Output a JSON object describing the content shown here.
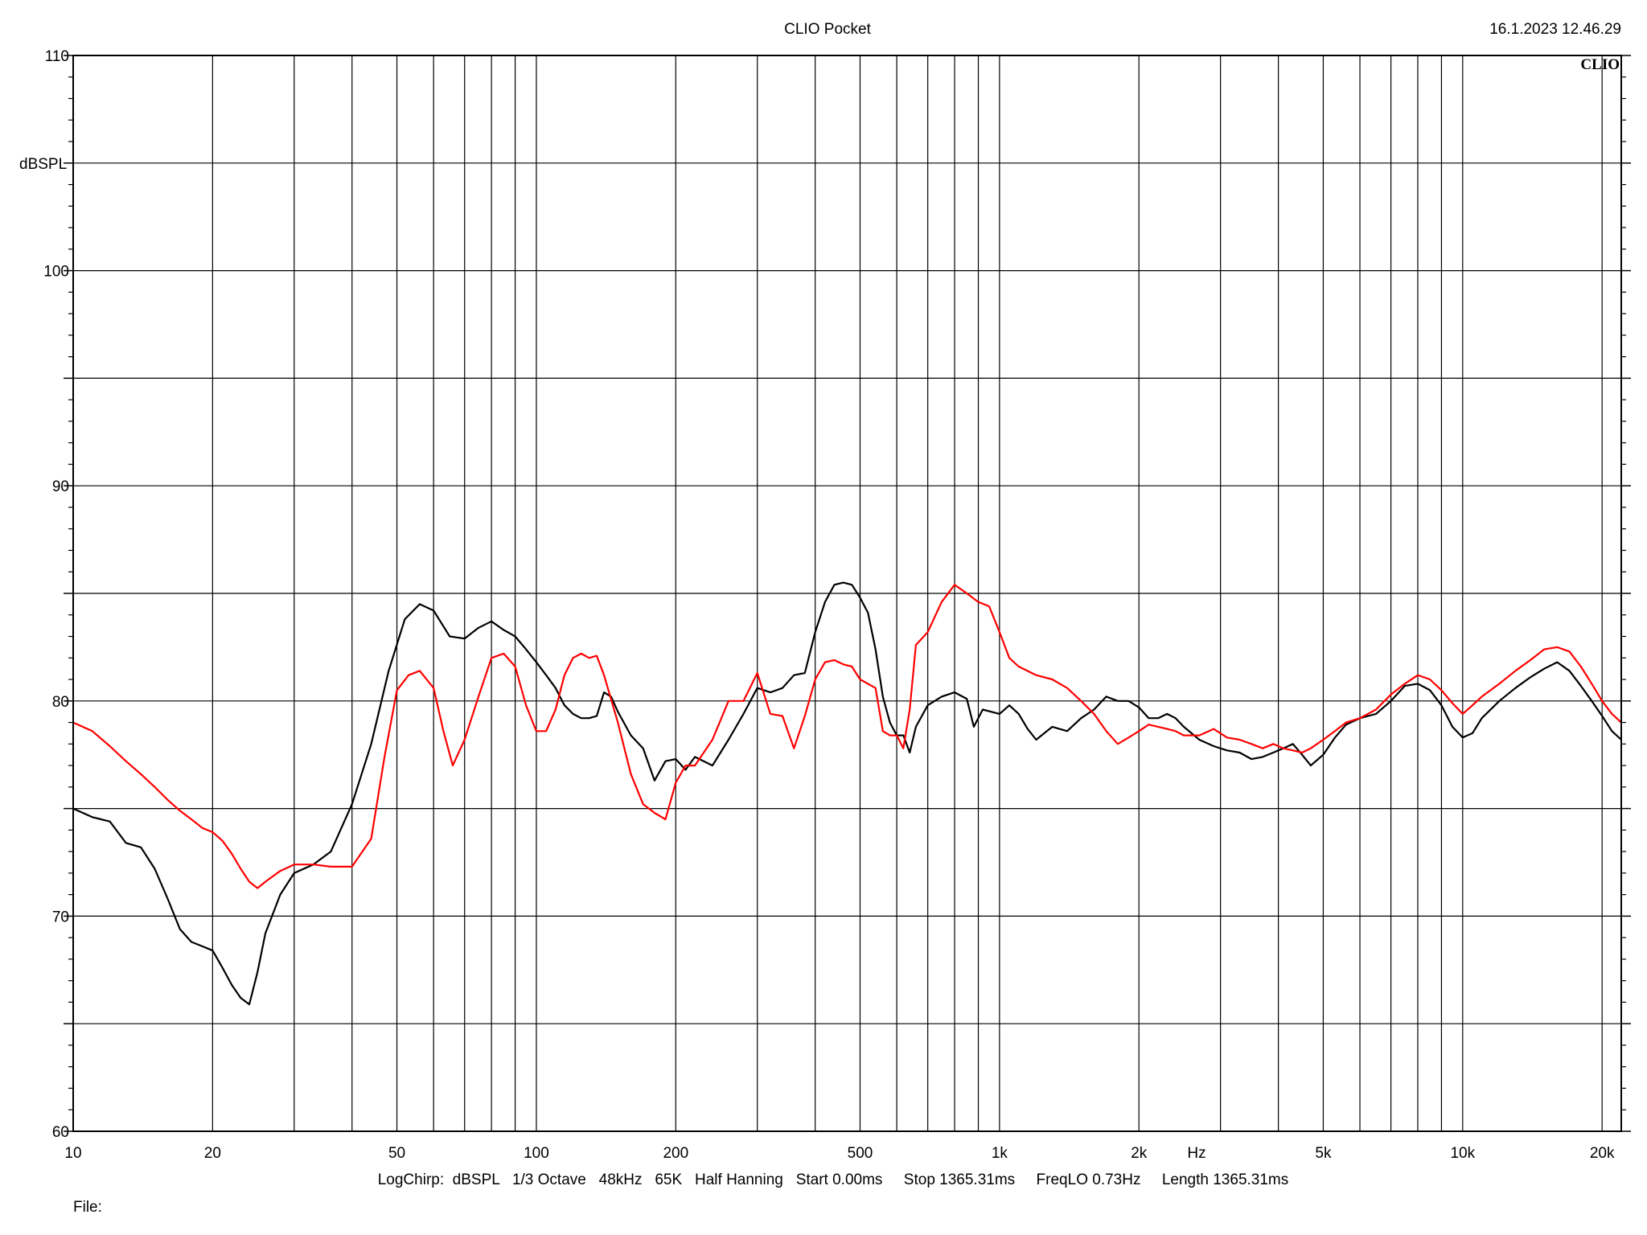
{
  "header": {
    "title": "CLIO Pocket",
    "timestamp": "16.1.2023 12.46.29",
    "logo": "CLIO"
  },
  "footer": {
    "settings": "LogChirp:  dBSPL   1/3 Octave   48kHz   65K   Half Hanning   Start 0.00ms     Stop 1365.31ms     FreqLO 0.73Hz     Length 1365.31ms",
    "file_label": "File:"
  },
  "colors": {
    "background": "#ffffff",
    "grid": "#000000",
    "black_trace": "#000000",
    "red_trace": "#ff0000"
  },
  "chart_data": {
    "type": "line",
    "title": "CLIO Pocket",
    "xlabel": "Hz",
    "ylabel": "dBSPL",
    "xscale": "log",
    "xlim": [
      10,
      22000
    ],
    "ylim": [
      60,
      110
    ],
    "grid": true,
    "x_tick_labels": [
      {
        "value": 10,
        "label": "10"
      },
      {
        "value": 20,
        "label": "20"
      },
      {
        "value": 50,
        "label": "50"
      },
      {
        "value": 100,
        "label": "100"
      },
      {
        "value": 200,
        "label": "200"
      },
      {
        "value": 500,
        "label": "500"
      },
      {
        "value": 1000,
        "label": "1k"
      },
      {
        "value": 2000,
        "label": "2k"
      },
      {
        "value": 5000,
        "label": "5k"
      },
      {
        "value": 10000,
        "label": "10k"
      },
      {
        "value": 20000,
        "label": "20k"
      }
    ],
    "y_tick_labels": [
      {
        "value": 60,
        "label": "60"
      },
      {
        "value": 70,
        "label": "70"
      },
      {
        "value": 80,
        "label": "80"
      },
      {
        "value": 90,
        "label": "90"
      },
      {
        "value": 100,
        "label": "100"
      },
      {
        "value": 110,
        "label": "110"
      }
    ],
    "series": [
      {
        "color": "#000000",
        "points": [
          [
            10,
            75.0
          ],
          [
            11,
            74.6
          ],
          [
            12,
            74.4
          ],
          [
            13,
            73.4
          ],
          [
            14,
            73.2
          ],
          [
            15,
            72.2
          ],
          [
            16,
            70.8
          ],
          [
            17,
            69.4
          ],
          [
            18,
            68.8
          ],
          [
            19,
            68.6
          ],
          [
            20,
            68.4
          ],
          [
            21,
            67.6
          ],
          [
            22,
            66.8
          ],
          [
            23,
            66.2
          ],
          [
            24,
            65.9
          ],
          [
            25,
            67.4
          ],
          [
            26,
            69.2
          ],
          [
            28,
            71.0
          ],
          [
            30,
            72.0
          ],
          [
            33,
            72.4
          ],
          [
            36,
            73.0
          ],
          [
            40,
            75.2
          ],
          [
            44,
            78.0
          ],
          [
            48,
            81.4
          ],
          [
            52,
            83.8
          ],
          [
            56,
            84.5
          ],
          [
            60,
            84.2
          ],
          [
            65,
            83.0
          ],
          [
            70,
            82.9
          ],
          [
            75,
            83.4
          ],
          [
            80,
            83.7
          ],
          [
            85,
            83.3
          ],
          [
            90,
            83.0
          ],
          [
            95,
            82.4
          ],
          [
            100,
            81.8
          ],
          [
            105,
            81.2
          ],
          [
            110,
            80.6
          ],
          [
            115,
            79.8
          ],
          [
            120,
            79.4
          ],
          [
            125,
            79.2
          ],
          [
            130,
            79.2
          ],
          [
            135,
            79.3
          ],
          [
            140,
            80.4
          ],
          [
            145,
            80.2
          ],
          [
            150,
            79.5
          ],
          [
            160,
            78.4
          ],
          [
            170,
            77.8
          ],
          [
            180,
            76.3
          ],
          [
            190,
            77.2
          ],
          [
            200,
            77.3
          ],
          [
            210,
            76.8
          ],
          [
            220,
            77.4
          ],
          [
            240,
            77.0
          ],
          [
            260,
            78.2
          ],
          [
            280,
            79.4
          ],
          [
            300,
            80.6
          ],
          [
            320,
            80.4
          ],
          [
            340,
            80.6
          ],
          [
            360,
            81.2
          ],
          [
            380,
            81.3
          ],
          [
            400,
            83.2
          ],
          [
            420,
            84.6
          ],
          [
            440,
            85.4
          ],
          [
            460,
            85.5
          ],
          [
            480,
            85.4
          ],
          [
            500,
            84.8
          ],
          [
            520,
            84.1
          ],
          [
            540,
            82.4
          ],
          [
            560,
            80.2
          ],
          [
            580,
            79.0
          ],
          [
            600,
            78.4
          ],
          [
            620,
            78.4
          ],
          [
            640,
            77.6
          ],
          [
            660,
            78.8
          ],
          [
            700,
            79.8
          ],
          [
            750,
            80.2
          ],
          [
            800,
            80.4
          ],
          [
            850,
            80.1
          ],
          [
            880,
            78.8
          ],
          [
            920,
            79.6
          ],
          [
            1000,
            79.4
          ],
          [
            1050,
            79.8
          ],
          [
            1100,
            79.4
          ],
          [
            1150,
            78.7
          ],
          [
            1200,
            78.2
          ],
          [
            1300,
            78.8
          ],
          [
            1400,
            78.6
          ],
          [
            1500,
            79.2
          ],
          [
            1600,
            79.6
          ],
          [
            1700,
            80.2
          ],
          [
            1800,
            80.0
          ],
          [
            1900,
            80.0
          ],
          [
            2000,
            79.7
          ],
          [
            2100,
            79.2
          ],
          [
            2200,
            79.2
          ],
          [
            2300,
            79.4
          ],
          [
            2400,
            79.2
          ],
          [
            2500,
            78.8
          ],
          [
            2700,
            78.2
          ],
          [
            2900,
            77.9
          ],
          [
            3100,
            77.7
          ],
          [
            3300,
            77.6
          ],
          [
            3500,
            77.3
          ],
          [
            3700,
            77.4
          ],
          [
            3900,
            77.6
          ],
          [
            4100,
            77.8
          ],
          [
            4300,
            78.0
          ],
          [
            4500,
            77.5
          ],
          [
            4700,
            77.0
          ],
          [
            5000,
            77.5
          ],
          [
            5300,
            78.3
          ],
          [
            5600,
            78.9
          ],
          [
            6000,
            79.2
          ],
          [
            6500,
            79.4
          ],
          [
            7000,
            80.0
          ],
          [
            7500,
            80.7
          ],
          [
            8000,
            80.8
          ],
          [
            8500,
            80.5
          ],
          [
            9000,
            79.8
          ],
          [
            9500,
            78.8
          ],
          [
            10000,
            78.3
          ],
          [
            10500,
            78.5
          ],
          [
            11000,
            79.2
          ],
          [
            12000,
            80.0
          ],
          [
            13000,
            80.6
          ],
          [
            14000,
            81.1
          ],
          [
            15000,
            81.5
          ],
          [
            16000,
            81.8
          ],
          [
            17000,
            81.4
          ],
          [
            18000,
            80.7
          ],
          [
            19000,
            80.0
          ],
          [
            20000,
            79.3
          ],
          [
            21000,
            78.6
          ],
          [
            22000,
            78.2
          ]
        ]
      },
      {
        "color": "#ff0000",
        "points": [
          [
            10,
            79.0
          ],
          [
            11,
            78.6
          ],
          [
            12,
            77.9
          ],
          [
            13,
            77.2
          ],
          [
            14,
            76.6
          ],
          [
            15,
            76.0
          ],
          [
            16,
            75.4
          ],
          [
            17,
            74.9
          ],
          [
            18,
            74.5
          ],
          [
            19,
            74.1
          ],
          [
            20,
            73.9
          ],
          [
            21,
            73.5
          ],
          [
            22,
            72.9
          ],
          [
            23,
            72.2
          ],
          [
            24,
            71.6
          ],
          [
            25,
            71.3
          ],
          [
            26,
            71.6
          ],
          [
            28,
            72.1
          ],
          [
            30,
            72.4
          ],
          [
            33,
            72.4
          ],
          [
            36,
            72.3
          ],
          [
            40,
            72.3
          ],
          [
            44,
            73.6
          ],
          [
            47,
            77.4
          ],
          [
            50,
            80.5
          ],
          [
            53,
            81.2
          ],
          [
            56,
            81.4
          ],
          [
            60,
            80.6
          ],
          [
            63,
            78.6
          ],
          [
            66,
            77.0
          ],
          [
            70,
            78.2
          ],
          [
            75,
            80.2
          ],
          [
            80,
            82.0
          ],
          [
            85,
            82.2
          ],
          [
            90,
            81.6
          ],
          [
            95,
            79.8
          ],
          [
            100,
            78.6
          ],
          [
            105,
            78.6
          ],
          [
            110,
            79.6
          ],
          [
            115,
            81.2
          ],
          [
            120,
            82.0
          ],
          [
            125,
            82.2
          ],
          [
            130,
            82.0
          ],
          [
            135,
            82.1
          ],
          [
            140,
            81.2
          ],
          [
            150,
            79.0
          ],
          [
            160,
            76.6
          ],
          [
            170,
            75.2
          ],
          [
            180,
            74.8
          ],
          [
            190,
            74.5
          ],
          [
            200,
            76.2
          ],
          [
            210,
            77.0
          ],
          [
            220,
            77.0
          ],
          [
            240,
            78.2
          ],
          [
            260,
            80.0
          ],
          [
            280,
            80.0
          ],
          [
            300,
            81.3
          ],
          [
            320,
            79.4
          ],
          [
            340,
            79.3
          ],
          [
            360,
            77.8
          ],
          [
            380,
            79.3
          ],
          [
            400,
            81.0
          ],
          [
            420,
            81.8
          ],
          [
            440,
            81.9
          ],
          [
            460,
            81.7
          ],
          [
            480,
            81.6
          ],
          [
            500,
            81.0
          ],
          [
            540,
            80.6
          ],
          [
            560,
            78.6
          ],
          [
            580,
            78.4
          ],
          [
            600,
            78.4
          ],
          [
            620,
            77.8
          ],
          [
            640,
            79.6
          ],
          [
            660,
            82.6
          ],
          [
            700,
            83.2
          ],
          [
            750,
            84.6
          ],
          [
            800,
            85.4
          ],
          [
            850,
            85.0
          ],
          [
            900,
            84.6
          ],
          [
            950,
            84.4
          ],
          [
            1000,
            83.2
          ],
          [
            1050,
            82.0
          ],
          [
            1100,
            81.6
          ],
          [
            1200,
            81.2
          ],
          [
            1300,
            81.0
          ],
          [
            1400,
            80.6
          ],
          [
            1500,
            80.0
          ],
          [
            1600,
            79.4
          ],
          [
            1700,
            78.6
          ],
          [
            1800,
            78.0
          ],
          [
            1900,
            78.3
          ],
          [
            2000,
            78.6
          ],
          [
            2100,
            78.9
          ],
          [
            2200,
            78.8
          ],
          [
            2300,
            78.7
          ],
          [
            2400,
            78.6
          ],
          [
            2500,
            78.4
          ],
          [
            2700,
            78.4
          ],
          [
            2900,
            78.7
          ],
          [
            3100,
            78.3
          ],
          [
            3300,
            78.2
          ],
          [
            3500,
            78.0
          ],
          [
            3700,
            77.8
          ],
          [
            3900,
            78.0
          ],
          [
            4100,
            77.8
          ],
          [
            4300,
            77.7
          ],
          [
            4500,
            77.6
          ],
          [
            4700,
            77.8
          ],
          [
            5000,
            78.2
          ],
          [
            5300,
            78.6
          ],
          [
            5600,
            79.0
          ],
          [
            6000,
            79.2
          ],
          [
            6500,
            79.6
          ],
          [
            7000,
            80.3
          ],
          [
            7500,
            80.8
          ],
          [
            8000,
            81.2
          ],
          [
            8500,
            81.0
          ],
          [
            9000,
            80.5
          ],
          [
            9500,
            79.9
          ],
          [
            10000,
            79.4
          ],
          [
            10500,
            79.8
          ],
          [
            11000,
            80.2
          ],
          [
            12000,
            80.8
          ],
          [
            13000,
            81.4
          ],
          [
            14000,
            81.9
          ],
          [
            15000,
            82.4
          ],
          [
            16000,
            82.5
          ],
          [
            17000,
            82.3
          ],
          [
            18000,
            81.6
          ],
          [
            19000,
            80.8
          ],
          [
            20000,
            80.0
          ],
          [
            21000,
            79.4
          ],
          [
            22000,
            79.0
          ]
        ]
      }
    ]
  }
}
